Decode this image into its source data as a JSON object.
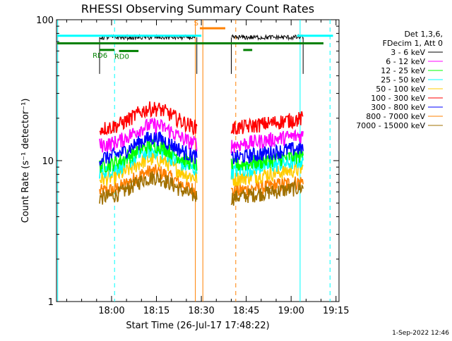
{
  "chart_data": {
    "type": "line",
    "title": "RHESSI Observing Summary Count Rates",
    "xlabel": "Start Time (26-Jul-17 17:48:22)",
    "ylabel": "Count Rate (s⁻¹ detector⁻¹)",
    "yscale": "log",
    "xlim": [
      -8.4,
      86
    ],
    "ylim": [
      1,
      100
    ],
    "x_unit": "minutes after 17:50:00",
    "x_ticks": [
      10,
      25,
      40,
      55,
      70,
      85
    ],
    "x_ticklabels": [
      "18:00",
      "18:15",
      "18:30",
      "18:45",
      "19:00",
      "19:15"
    ],
    "y_ticks": [
      1,
      10,
      100
    ],
    "y_ticklabels": [
      "1",
      "10",
      "100"
    ],
    "legend": {
      "position": "right",
      "header": [
        "Det 1,3,6,",
        "FDecim 1, Att 0"
      ]
    },
    "series": [
      {
        "name": "3 - 6 keV",
        "color": "#000000",
        "level": 75,
        "shape": "flat"
      },
      {
        "name": "6 - 12 keV",
        "color": "#ff00ff",
        "level": 16,
        "shape": "hump"
      },
      {
        "name": "12 - 25 keV",
        "color": "#00ff00",
        "level": 11.5,
        "shape": "hump"
      },
      {
        "name": "25 - 50 keV",
        "color": "#00ffff",
        "level": 10.5,
        "shape": "hump"
      },
      {
        "name": "50 - 100 keV",
        "color": "#ffcc00",
        "level": 9.2,
        "shape": "hump"
      },
      {
        "name": "100 - 300 keV",
        "color": "#ff0000",
        "level": 21,
        "shape": "hump"
      },
      {
        "name": "300 - 800 keV",
        "color": "#0000ff",
        "level": 13,
        "shape": "hump"
      },
      {
        "name": "800 - 7000 keV",
        "color": "#ff8000",
        "level": 7.5,
        "shape": "hump"
      },
      {
        "name": "7000 - 15000 keV",
        "color": "#a07000",
        "level": 6.8,
        "shape": "hump"
      }
    ],
    "data_segments": [
      [
        6,
        38.5
      ],
      [
        50,
        74
      ]
    ],
    "flags": [
      {
        "label": "RD6",
        "color": "#008000",
        "x_start": 6,
        "x_end": 11,
        "y": 61
      },
      {
        "label": "RD0",
        "color": "#008000",
        "x_start": 12.5,
        "x_end": 19,
        "y": 60
      },
      {
        "label": "",
        "color": "#008000",
        "x_start": 54,
        "x_end": 57,
        "y": 61
      },
      {
        "label": "S",
        "color": "#ff8000",
        "x_start": 39.5,
        "x_end": 48,
        "y": 87
      }
    ],
    "saa_band": {
      "color": "#008000",
      "y": 68
    },
    "cyan_band": {
      "color": "#00ffff",
      "y": 77
    },
    "vertical_markers": [
      {
        "x": -8,
        "color": "#00ffff",
        "style": "solid"
      },
      {
        "x": 11,
        "color": "#00ffff",
        "style": "dashed"
      },
      {
        "x": 38,
        "color": "#ff8000",
        "style": "solid"
      },
      {
        "x": 40.5,
        "color": "#ff8000",
        "style": "solid"
      },
      {
        "x": 51.5,
        "color": "#ff8000",
        "style": "dashed"
      },
      {
        "x": 73,
        "color": "#00ffff",
        "style": "solid"
      },
      {
        "x": 83,
        "color": "#00ffff",
        "style": "dashed"
      }
    ],
    "footer_date": "1-Sep-2022 12:46"
  }
}
